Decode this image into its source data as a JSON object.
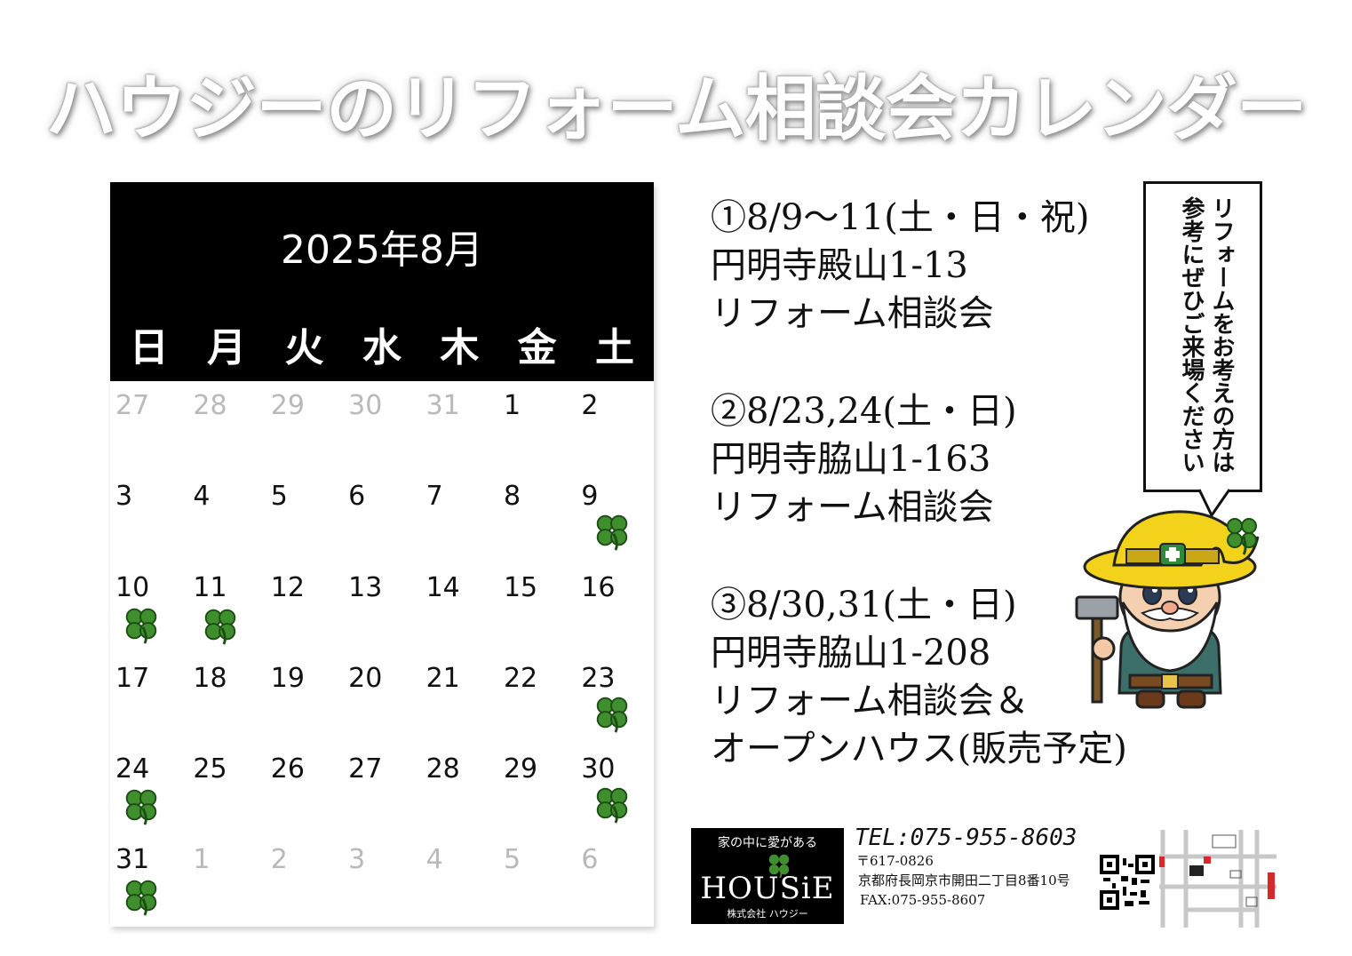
{
  "title": "ハウジーのリフォーム相談会カレンダー",
  "calendar": {
    "month_label": "2025年8月",
    "weekdays": [
      "日",
      "月",
      "火",
      "水",
      "木",
      "金",
      "土"
    ],
    "days": [
      {
        "label": "27",
        "muted": true,
        "clover": false
      },
      {
        "label": "28",
        "muted": true,
        "clover": false
      },
      {
        "label": "29",
        "muted": true,
        "clover": false
      },
      {
        "label": "30",
        "muted": true,
        "clover": false
      },
      {
        "label": "31",
        "muted": true,
        "clover": false
      },
      {
        "label": "1",
        "muted": false,
        "clover": false
      },
      {
        "label": "2",
        "muted": false,
        "clover": false
      },
      {
        "label": "3",
        "muted": false,
        "clover": false
      },
      {
        "label": "4",
        "muted": false,
        "clover": false
      },
      {
        "label": "5",
        "muted": false,
        "clover": false
      },
      {
        "label": "6",
        "muted": false,
        "clover": false
      },
      {
        "label": "7",
        "muted": false,
        "clover": false
      },
      {
        "label": "8",
        "muted": false,
        "clover": false
      },
      {
        "label": "9",
        "muted": false,
        "clover": true
      },
      {
        "label": "10",
        "muted": false,
        "clover": true
      },
      {
        "label": "11",
        "muted": false,
        "clover": true
      },
      {
        "label": "12",
        "muted": false,
        "clover": false
      },
      {
        "label": "13",
        "muted": false,
        "clover": false
      },
      {
        "label": "14",
        "muted": false,
        "clover": false
      },
      {
        "label": "15",
        "muted": false,
        "clover": false
      },
      {
        "label": "16",
        "muted": false,
        "clover": false
      },
      {
        "label": "17",
        "muted": false,
        "clover": false
      },
      {
        "label": "18",
        "muted": false,
        "clover": false
      },
      {
        "label": "19",
        "muted": false,
        "clover": false
      },
      {
        "label": "20",
        "muted": false,
        "clover": false
      },
      {
        "label": "21",
        "muted": false,
        "clover": false
      },
      {
        "label": "22",
        "muted": false,
        "clover": false
      },
      {
        "label": "23",
        "muted": false,
        "clover": true
      },
      {
        "label": "24",
        "muted": false,
        "clover": true
      },
      {
        "label": "25",
        "muted": false,
        "clover": false
      },
      {
        "label": "26",
        "muted": false,
        "clover": false
      },
      {
        "label": "27",
        "muted": false,
        "clover": false
      },
      {
        "label": "28",
        "muted": false,
        "clover": false
      },
      {
        "label": "29",
        "muted": false,
        "clover": false
      },
      {
        "label": "30",
        "muted": false,
        "clover": true
      },
      {
        "label": "31",
        "muted": false,
        "clover": true
      },
      {
        "label": "1",
        "muted": true,
        "clover": false
      },
      {
        "label": "2",
        "muted": true,
        "clover": false
      },
      {
        "label": "3",
        "muted": true,
        "clover": false
      },
      {
        "label": "4",
        "muted": true,
        "clover": false
      },
      {
        "label": "5",
        "muted": true,
        "clover": false
      },
      {
        "label": "6",
        "muted": true,
        "clover": false
      }
    ]
  },
  "events": [
    {
      "lines": [
        "①8/9～11(土・日・祝)",
        "円明寺殿山1-13",
        "リフォーム相談会"
      ]
    },
    {
      "lines": [
        "②8/23,24(土・日)",
        "円明寺脇山1-163",
        "リフォーム相談会"
      ]
    },
    {
      "lines": [
        "③8/30,31(土・日)",
        "円明寺脇山1-208",
        "リフォーム相談会＆",
        "オープンハウス(販売予定)"
      ]
    }
  ],
  "bubble": {
    "text": "リフォームをお考えの方は参考にぜひご来場ください"
  },
  "logo": {
    "tagline": "家の中に愛がある",
    "name": "HOUSiE",
    "company": "株式会社 ハウジー"
  },
  "contact": {
    "tel": "TEL:075-955-8603",
    "postal": "〒617-0826",
    "address": "京都府長岡京市開田二丁目8番10号",
    "fax": "FAX:075-955-8607"
  },
  "colors": {
    "header_bg": "#000000",
    "clover": "#3f8f2e",
    "muted_day": "#b9b9b9",
    "mascot_hat": "#f2d21a"
  }
}
